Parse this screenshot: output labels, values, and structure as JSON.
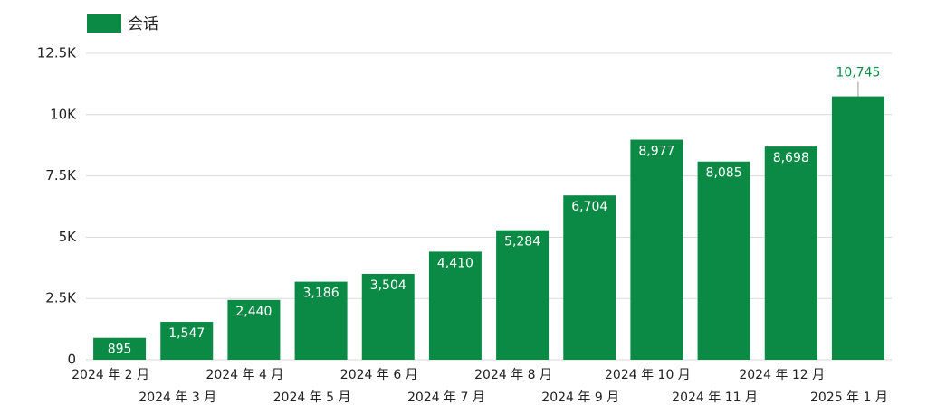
{
  "chart_data": {
    "type": "bar",
    "legend": "会话",
    "categories": [
      "2024 年 2 月",
      "2024 年 3 月",
      "2024 年 4 月",
      "2024 年 5 月",
      "2024 年 6 月",
      "2024 年 7 月",
      "2024 年 8 月",
      "2024 年 9 月",
      "2024 年 10 月",
      "2024 年 11 月",
      "2024 年 12 月",
      "2025 年 1 月"
    ],
    "values": [
      895,
      1547,
      2440,
      3186,
      3504,
      4410,
      5284,
      6704,
      8977,
      8085,
      8698,
      10745
    ],
    "value_labels": [
      "895",
      "1,547",
      "2,440",
      "3,186",
      "3,504",
      "4,410",
      "5,284",
      "6,704",
      "8,977",
      "8,085",
      "8,698",
      "10,745"
    ],
    "color": "#0b8a45",
    "ylim": [
      0,
      12500
    ],
    "yticks": [
      0,
      {
        "value": 2500,
        "label": "2.5K"
      },
      {
        "value": 5000,
        "label": "5K"
      },
      {
        "value": 7500,
        "label": "7.5K"
      },
      {
        "value": 10000,
        "label": "10K"
      },
      {
        "value": 12500,
        "label": "12.5K"
      }
    ],
    "grid": true
  }
}
